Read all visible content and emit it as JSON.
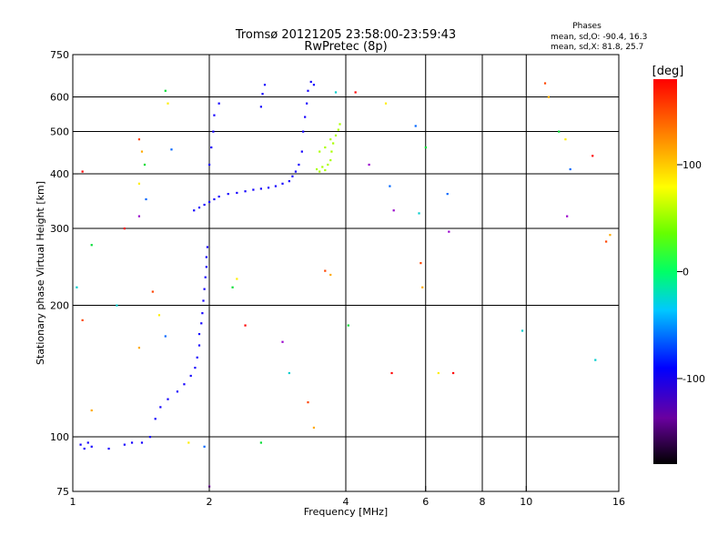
{
  "chart_data": {
    "type": "scatter",
    "title": "Tromsø 20121205 23:58:00-23:59:43",
    "subtitle": "RwPretec (8p)",
    "xlabel": "Frequency [MHz]",
    "ylabel": "Stationary phase Virtual Height [km]",
    "x_scale": "log",
    "y_scale": "log",
    "xlim": [
      1,
      16
    ],
    "ylim": [
      75,
      750
    ],
    "x_ticks": [
      1,
      2,
      4,
      6,
      8,
      10,
      16
    ],
    "y_ticks": [
      75,
      100,
      200,
      300,
      400,
      500,
      600,
      750
    ],
    "x_gridlines": [
      2,
      4,
      6,
      8,
      10
    ],
    "y_gridlines": [
      100,
      200,
      300,
      400,
      500,
      600
    ],
    "grid": true,
    "stats": {
      "header": "Phases",
      "line_o": "mean, sd,O: -90.4, 16.3",
      "line_x": "mean, sd,X: 81.8, 25.7"
    },
    "colorbar": {
      "label": "[deg]",
      "range": [
        -180,
        180
      ],
      "ticks": [
        100,
        0,
        -100
      ],
      "tick_labels": [
        "100",
        "0",
        "-100"
      ]
    },
    "series": [
      {
        "points": [
          [
            1.04,
            96
          ],
          [
            1.06,
            94
          ],
          [
            1.08,
            97
          ],
          [
            1.1,
            95
          ],
          [
            1.2,
            94
          ],
          [
            1.3,
            96
          ],
          [
            1.35,
            97
          ],
          [
            1.42,
            97
          ],
          [
            1.48,
            100
          ],
          [
            1.52,
            110
          ],
          [
            1.56,
            117
          ],
          [
            1.62,
            122
          ],
          [
            1.7,
            127
          ],
          [
            1.76,
            132
          ],
          [
            1.82,
            138
          ],
          [
            1.86,
            144
          ],
          [
            1.88,
            152
          ],
          [
            1.9,
            162
          ],
          [
            1.9,
            172
          ],
          [
            1.92,
            182
          ],
          [
            1.93,
            192
          ],
          [
            1.94,
            205
          ],
          [
            1.95,
            218
          ],
          [
            1.96,
            232
          ],
          [
            1.97,
            245
          ],
          [
            1.97,
            258
          ],
          [
            1.98,
            272
          ],
          [
            1.85,
            330
          ],
          [
            1.9,
            335
          ],
          [
            1.95,
            340
          ],
          [
            2.0,
            345
          ],
          [
            2.05,
            350
          ],
          [
            2.1,
            355
          ],
          [
            2.2,
            360
          ],
          [
            2.3,
            362
          ],
          [
            2.4,
            365
          ],
          [
            2.5,
            368
          ],
          [
            2.6,
            370
          ],
          [
            2.7,
            372
          ],
          [
            2.8,
            375
          ],
          [
            2.9,
            380
          ],
          [
            3.0,
            385
          ],
          [
            3.05,
            395
          ],
          [
            3.1,
            405
          ],
          [
            3.15,
            420
          ],
          [
            2.0,
            420
          ],
          [
            2.02,
            460
          ],
          [
            2.04,
            500
          ],
          [
            2.05,
            545
          ],
          [
            2.1,
            580
          ],
          [
            2.6,
            570
          ],
          [
            2.62,
            610
          ],
          [
            2.65,
            640
          ],
          [
            3.2,
            450
          ],
          [
            3.22,
            500
          ],
          [
            3.25,
            540
          ],
          [
            3.28,
            580
          ],
          [
            3.3,
            620
          ],
          [
            3.35,
            650
          ],
          [
            3.4,
            640
          ]
        ],
        "phase_deg": -100
      },
      {
        "points": [
          [
            3.45,
            410
          ],
          [
            3.5,
            405
          ],
          [
            3.55,
            415
          ],
          [
            3.6,
            408
          ],
          [
            3.65,
            420
          ],
          [
            3.7,
            430
          ],
          [
            3.72,
            450
          ],
          [
            3.75,
            470
          ],
          [
            3.8,
            490
          ],
          [
            3.85,
            505
          ],
          [
            3.88,
            520
          ],
          [
            3.5,
            450
          ],
          [
            3.6,
            460
          ],
          [
            3.7,
            480
          ]
        ],
        "phase_deg": 90
      },
      {
        "points": [
          [
            1.4,
            480
          ],
          [
            1.42,
            450
          ],
          [
            1.44,
            420
          ],
          [
            1.4,
            380
          ],
          [
            1.45,
            350
          ],
          [
            1.4,
            320
          ],
          [
            1.3,
            300
          ],
          [
            1.25,
            200
          ],
          [
            1.5,
            215
          ],
          [
            1.4,
            160
          ],
          [
            1.1,
            275
          ],
          [
            1.55,
            190
          ],
          [
            1.6,
            170
          ],
          [
            2.9,
            165
          ],
          [
            2.4,
            180
          ],
          [
            3.0,
            140
          ],
          [
            3.3,
            120
          ],
          [
            3.4,
            105
          ],
          [
            4.05,
            180
          ],
          [
            4.9,
            580
          ],
          [
            5.0,
            375
          ],
          [
            5.1,
            330
          ],
          [
            5.05,
            140
          ],
          [
            5.8,
            325
          ],
          [
            5.85,
            250
          ],
          [
            5.9,
            220
          ],
          [
            6.0,
            460
          ],
          [
            6.4,
            140
          ],
          [
            6.7,
            360
          ],
          [
            6.75,
            295
          ],
          [
            6.9,
            140
          ],
          [
            9.8,
            175
          ],
          [
            11.0,
            645
          ],
          [
            11.2,
            600
          ],
          [
            11.8,
            500
          ],
          [
            12.2,
            480
          ],
          [
            12.5,
            410
          ],
          [
            12.3,
            320
          ],
          [
            14.0,
            440
          ],
          [
            14.2,
            150
          ],
          [
            15.0,
            280
          ],
          [
            15.3,
            290
          ],
          [
            2.6,
            97
          ],
          [
            1.8,
            97
          ],
          [
            1.95,
            95
          ],
          [
            2.0,
            77
          ],
          [
            1.05,
            405
          ],
          [
            1.02,
            220
          ],
          [
            1.05,
            185
          ],
          [
            1.1,
            115
          ],
          [
            1.6,
            620
          ],
          [
            1.62,
            580
          ],
          [
            1.65,
            455
          ],
          [
            4.5,
            420
          ],
          [
            4.2,
            615
          ],
          [
            3.8,
            615
          ],
          [
            3.6,
            240
          ],
          [
            3.7,
            235
          ],
          [
            2.25,
            220
          ],
          [
            2.3,
            230
          ],
          [
            5.7,
            515
          ]
        ],
        "phase_deg": 0
      }
    ]
  }
}
